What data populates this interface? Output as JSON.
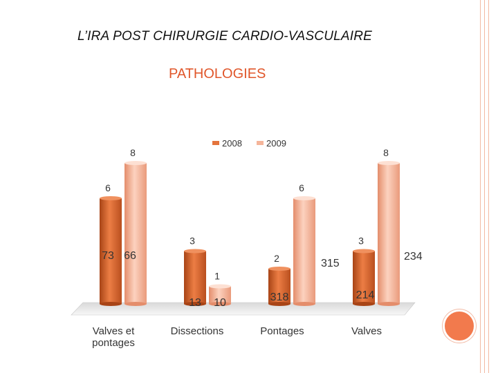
{
  "slide": {
    "title": "L’IRA POST CHIRURGIE CARDIO-VASCULAIRE"
  },
  "chart_data": {
    "type": "bar",
    "title": "PATHOLOGIES",
    "legend_position": "top",
    "grid": false,
    "categories": [
      "Valves et pontages",
      "Dissections",
      "Pontages",
      "Valves"
    ],
    "series": [
      {
        "name": "2008",
        "color": "#e4743d",
        "values": [
          6,
          3,
          2,
          3
        ],
        "inner_labels": [
          "73",
          "13",
          "318",
          "214"
        ]
      },
      {
        "name": "2009",
        "color": "#f5b59a",
        "values": [
          8,
          1,
          6,
          8
        ],
        "inner_labels": [
          "66",
          "10",
          "315",
          "234"
        ]
      }
    ],
    "ylim": [
      0,
      8
    ]
  }
}
